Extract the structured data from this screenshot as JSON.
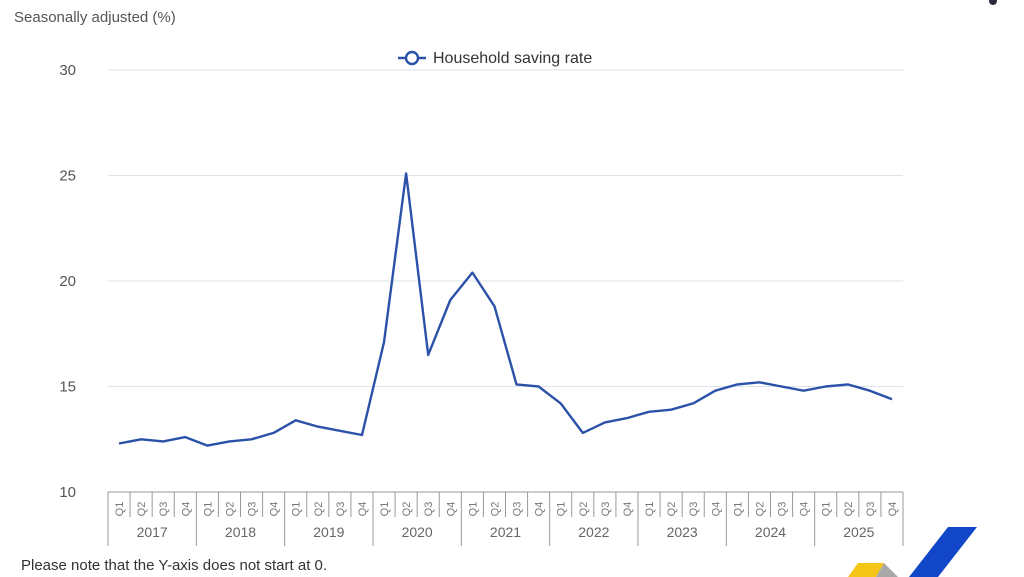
{
  "header": {
    "y_axis_title": "Seasonally adjusted (%)"
  },
  "footer": {
    "note": "Please note that the Y-axis does not start at 0."
  },
  "colors": {
    "line": "#2b52a8",
    "grid": "#dde3ea",
    "axis": "#999999",
    "logo_blue": "#1146c8",
    "logo_yellow": "#f5c518",
    "logo_grey": "#a8a8a8"
  },
  "chart_data": {
    "type": "line",
    "title": "",
    "ylabel": "Seasonally adjusted (%)",
    "xlabel": "",
    "ylim": [
      10,
      30
    ],
    "yticks": [
      10,
      15,
      20,
      25,
      30
    ],
    "grid": true,
    "legend_position": "top-center",
    "years": [
      "2017",
      "2018",
      "2019",
      "2020",
      "2021",
      "2022",
      "2023",
      "2024",
      "2025"
    ],
    "quarters": [
      "Q1",
      "Q2",
      "Q3",
      "Q4"
    ],
    "categories": [
      "2017 Q1",
      "2017 Q2",
      "2017 Q3",
      "2017 Q4",
      "2018 Q1",
      "2018 Q2",
      "2018 Q3",
      "2018 Q4",
      "2019 Q1",
      "2019 Q2",
      "2019 Q3",
      "2019 Q4",
      "2020 Q1",
      "2020 Q2",
      "2020 Q3",
      "2020 Q4",
      "2021 Q1",
      "2021 Q2",
      "2021 Q3",
      "2021 Q4",
      "2022 Q1",
      "2022 Q2",
      "2022 Q3",
      "2022 Q4",
      "2023 Q1",
      "2023 Q2",
      "2023 Q3",
      "2023 Q4",
      "2024 Q1",
      "2024 Q2",
      "2024 Q3",
      "2024 Q4",
      "2025 Q1",
      "2025 Q2",
      "2025 Q3",
      "2025 Q4"
    ],
    "series": [
      {
        "name": "Household saving rate",
        "values": [
          12.3,
          12.5,
          12.4,
          12.6,
          12.2,
          12.4,
          12.5,
          12.8,
          13.4,
          13.1,
          12.9,
          12.7,
          17.1,
          25.1,
          16.5,
          19.1,
          20.4,
          18.8,
          15.1,
          15.0,
          14.2,
          12.8,
          13.3,
          13.5,
          13.8,
          13.9,
          14.2,
          14.8,
          15.1,
          15.2,
          15.0,
          14.8,
          15.0,
          15.1,
          14.8,
          14.4
        ]
      }
    ],
    "annotations": [
      "Please note that the Y-axis does not start at 0."
    ]
  }
}
